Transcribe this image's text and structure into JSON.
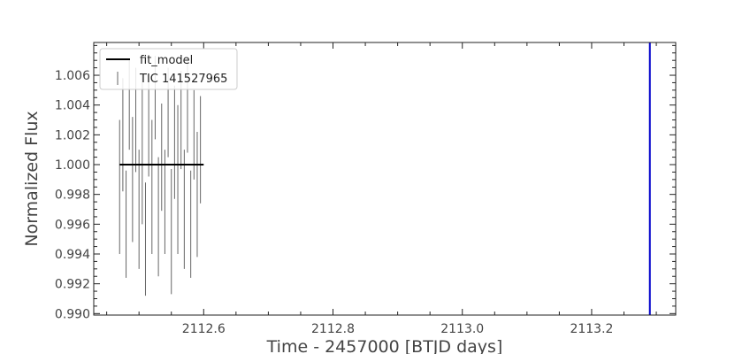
{
  "chart_data": {
    "type": "line",
    "xlabel": "Time - 2457000 [BTJD days]",
    "ylabel": "Normalized Flux",
    "xlim": [
      2112.43,
      2113.33
    ],
    "ylim": [
      0.9899,
      1.0082
    ],
    "x_ticks": [
      2112.6,
      2112.8,
      2113.0,
      2113.2
    ],
    "x_tick_labels": [
      "2112.6",
      "2112.8",
      "2113.0",
      "2113.2"
    ],
    "y_ticks": [
      0.99,
      0.992,
      0.994,
      0.996,
      0.998,
      1.0,
      1.002,
      1.004,
      1.006
    ],
    "y_tick_labels": [
      "0.990",
      "0.992",
      "0.994",
      "0.996",
      "0.998",
      "1.000",
      "1.002",
      "1.004",
      "1.006"
    ],
    "grid": false,
    "legend_position": "top-left",
    "series": [
      {
        "name": "fit_model",
        "color": "#000000",
        "style": "line",
        "x": [
          2112.47,
          2112.6
        ],
        "y": [
          1.0,
          1.0
        ]
      },
      {
        "name": "TIC 141527965",
        "color": "#666666",
        "style": "errorbar",
        "x": [
          2112.47,
          2112.475,
          2112.48,
          2112.485,
          2112.49,
          2112.495,
          2112.5,
          2112.505,
          2112.51,
          2112.515,
          2112.52,
          2112.525,
          2112.53,
          2112.535,
          2112.54,
          2112.545,
          2112.55,
          2112.555,
          2112.56,
          2112.565,
          2112.57,
          2112.575,
          2112.58,
          2112.585,
          2112.59,
          2112.595
        ],
        "y": [
          0.9985,
          1.002,
          0.996,
          1.004,
          0.999,
          1.003,
          0.997,
          1.001,
          0.995,
          1.0025,
          0.9985,
          1.0045,
          0.9965,
          1.0005,
          0.9975,
          1.0035,
          0.9955,
          1.0015,
          0.999,
          1.003,
          0.997,
          1.004,
          0.996,
          1.002,
          0.998,
          1.001
        ],
        "err": [
          0.0045,
          0.0038,
          0.0036,
          0.003,
          0.0042,
          0.0035,
          0.004,
          0.005,
          0.0038,
          0.0033,
          0.0045,
          0.0028,
          0.004,
          0.0036,
          0.0035,
          0.003,
          0.0042,
          0.0038,
          0.005,
          0.0033,
          0.004,
          0.0032,
          0.0036,
          0.003,
          0.0042,
          0.0036
        ]
      },
      {
        "name": "",
        "color": "#0000cc",
        "style": "vline",
        "x": [
          2113.29
        ]
      }
    ]
  }
}
